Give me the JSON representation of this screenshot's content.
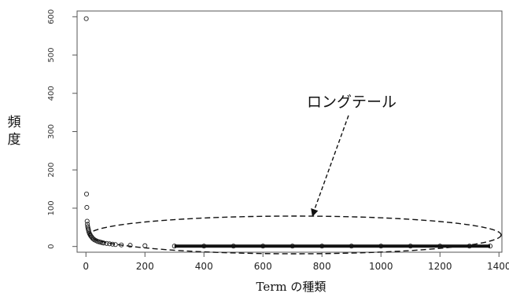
{
  "chart_data": {
    "type": "scatter",
    "title": "",
    "xlabel": "Term の種類",
    "ylabel": "頻度",
    "x_ticks": [
      "0",
      "200",
      "400",
      "600",
      "800",
      "1000",
      "1200",
      "1400"
    ],
    "y_ticks": [
      "0",
      "100",
      "200",
      "300",
      "400",
      "500",
      "600"
    ],
    "xlim": [
      -30,
      1410
    ],
    "ylim": [
      -15,
      615
    ],
    "grid": false,
    "annotation": "ロングテール",
    "series": [
      {
        "x": [
          1,
          2,
          3,
          4,
          5,
          6,
          7,
          8,
          9,
          10,
          12,
          14,
          16,
          18,
          20,
          23,
          26,
          30,
          35,
          40,
          45,
          50,
          55,
          60,
          70,
          80,
          90,
          100,
          120,
          150,
          200,
          300,
          400,
          500,
          600,
          700,
          800,
          900,
          1000,
          1100,
          1200,
          1300,
          1370
        ],
        "y": [
          595,
          137,
          102,
          66,
          58,
          52,
          48,
          45,
          42,
          38,
          34,
          31,
          28,
          26,
          24,
          21,
          19,
          17,
          15,
          13,
          12,
          11,
          10,
          9,
          8,
          7,
          6,
          5,
          4,
          3,
          2,
          1,
          1,
          1,
          1,
          1,
          1,
          1,
          1,
          1,
          1,
          1,
          1
        ]
      }
    ]
  }
}
